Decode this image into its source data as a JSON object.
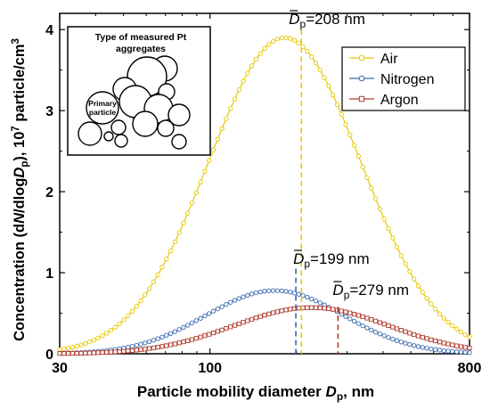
{
  "chart_data": {
    "type": "line",
    "xlabel_prefix": "Particle mobility diameter ",
    "xlabel_var": "D",
    "xlabel_sub": "p",
    "xlabel_suffix": ", nm",
    "ylabel_prefix": "Concentration (d",
    "ylabel_var1": "N",
    "ylabel_mid": "/dlog",
    "ylabel_var2": "D",
    "ylabel_sub": "p",
    "ylabel_mid2": "), 10",
    "ylabel_sup1": "7",
    "ylabel_mid3": " particle/cm",
    "ylabel_sup2": "3",
    "x_scale": "log",
    "xlim": [
      30,
      800
    ],
    "ylim": [
      0,
      4.2
    ],
    "x_ticks": [
      30,
      100,
      800
    ],
    "x_tick_labels": [
      "30",
      "100",
      "800"
    ],
    "y_ticks": [
      0,
      1,
      2,
      3,
      4
    ],
    "y_tick_labels": [
      "0",
      "1",
      "2",
      "3",
      "4"
    ],
    "legend_position": "top-right",
    "series": [
      {
        "name": "Air",
        "color": "#e8c800",
        "marker": "circle",
        "peak_x": 182,
        "peak_y": 3.9,
        "sigma_log": 0.265,
        "mean_diameter": 208
      },
      {
        "name": "Nitrogen",
        "color": "#3a67b0",
        "marker": "circle",
        "peak_x": 168,
        "peak_y": 0.78,
        "sigma_log": 0.24,
        "mean_diameter": 199
      },
      {
        "name": "Argon",
        "color": "#b03a2e",
        "marker": "square",
        "peak_x": 225,
        "peak_y": 0.57,
        "sigma_log": 0.27,
        "mean_diameter": 279
      }
    ],
    "annotations": [
      {
        "series": "Air",
        "symbol": "D",
        "sub": "p",
        "text": "=208 nm",
        "x": 208,
        "y_top": 4.0
      },
      {
        "series": "Nitrogen",
        "symbol": "D",
        "sub": "p",
        "text": "=199 nm",
        "x": 199,
        "y_top": 1.05
      },
      {
        "series": "Argon",
        "symbol": "D",
        "sub": "p",
        "text": "=279 nm",
        "x": 279,
        "y_top": 0.58
      }
    ]
  },
  "inset": {
    "title_line1": "Type of measured Pt",
    "title_line2": "aggregates",
    "primary_line1": "Primary",
    "primary_line2": "particle"
  }
}
